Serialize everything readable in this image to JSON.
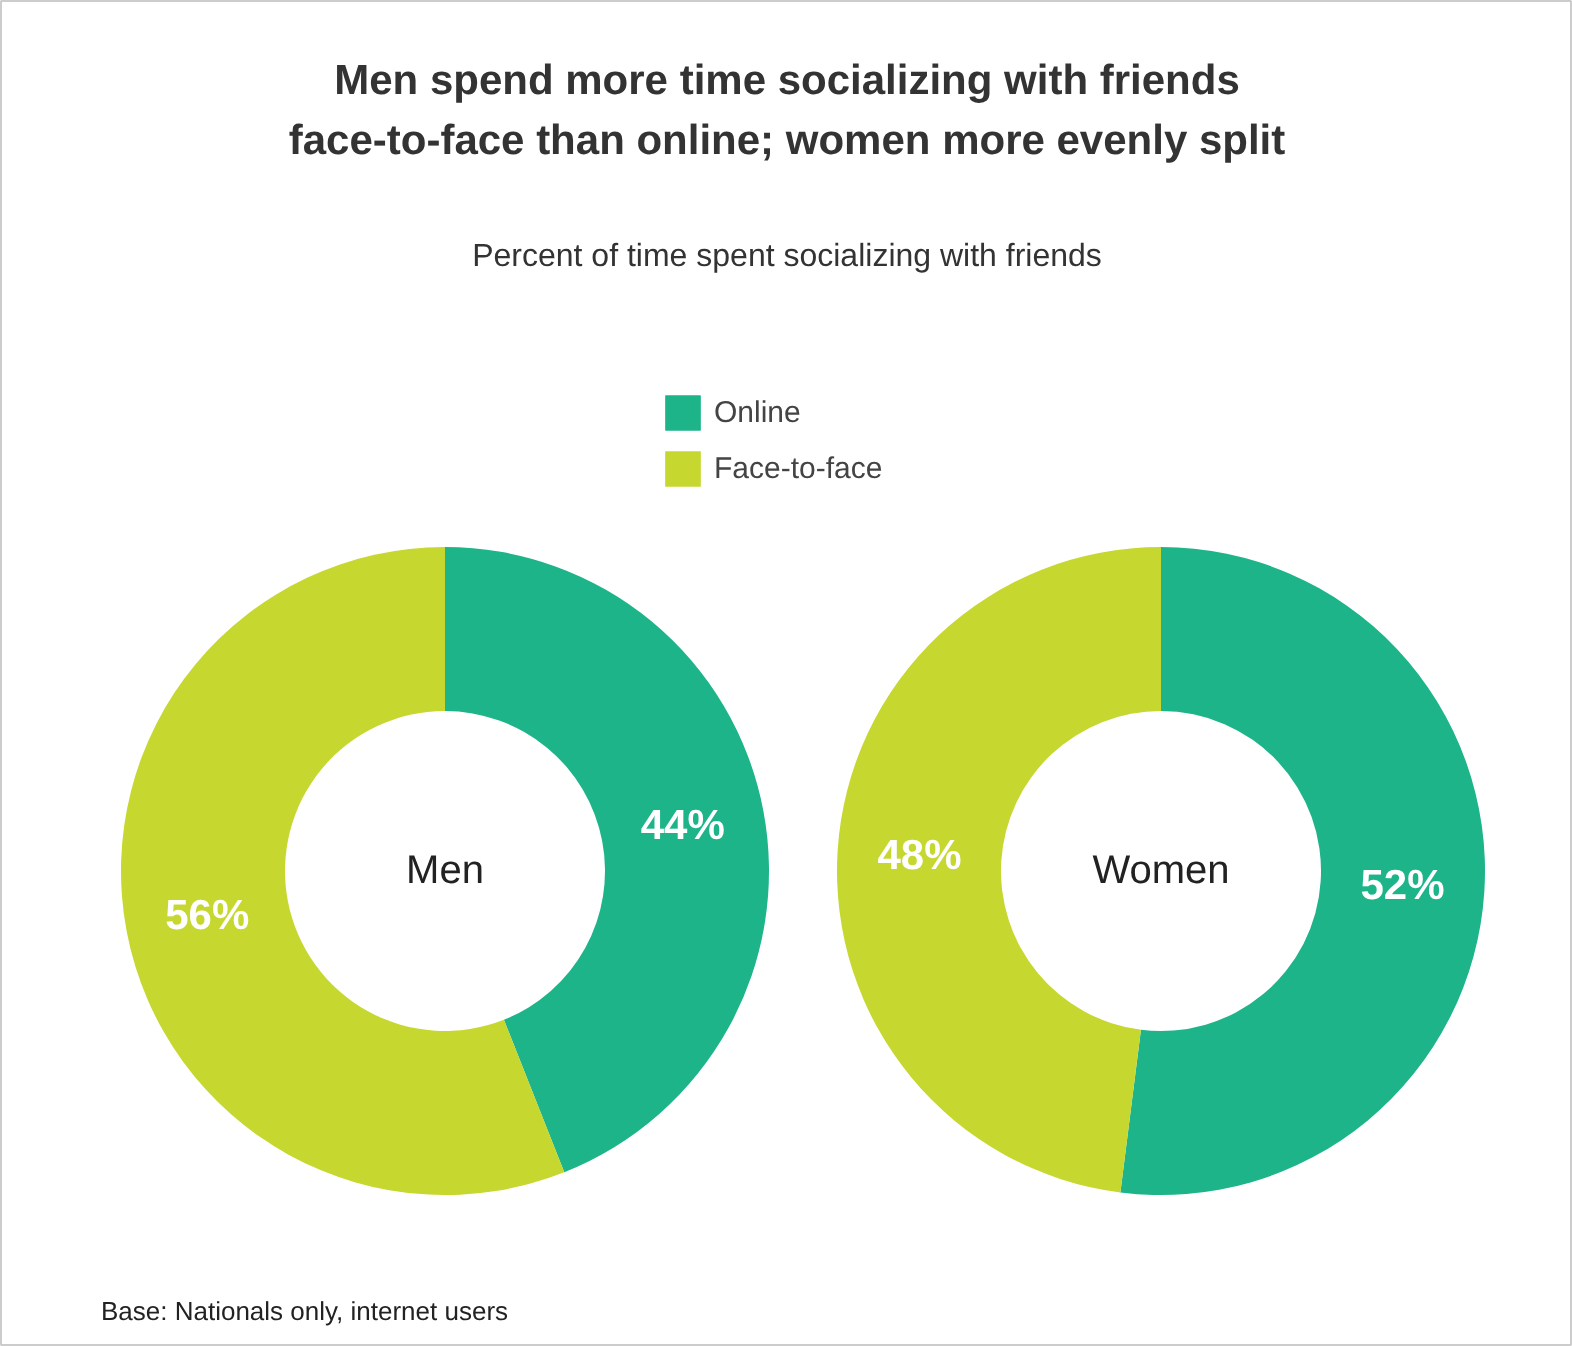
{
  "chart_data": {
    "type": "donut",
    "title": "Men spend more time socializing with friends face-to-face than online; women more evenly split",
    "subtitle": "Percent of time spent socializing with friends",
    "categories": [
      "Online",
      "Face-to-face"
    ],
    "colors": [
      "#1db48a",
      "#c6d72f"
    ],
    "legend": "top",
    "annotations": [
      "Base: Nationals only, internet users"
    ],
    "series": [
      {
        "name": "Men",
        "values": [
          44,
          56
        ],
        "value_labels": [
          "44%",
          "56%"
        ]
      },
      {
        "name": "Women",
        "values": [
          52,
          48
        ],
        "value_labels": [
          "52%",
          "48%"
        ]
      }
    ]
  }
}
